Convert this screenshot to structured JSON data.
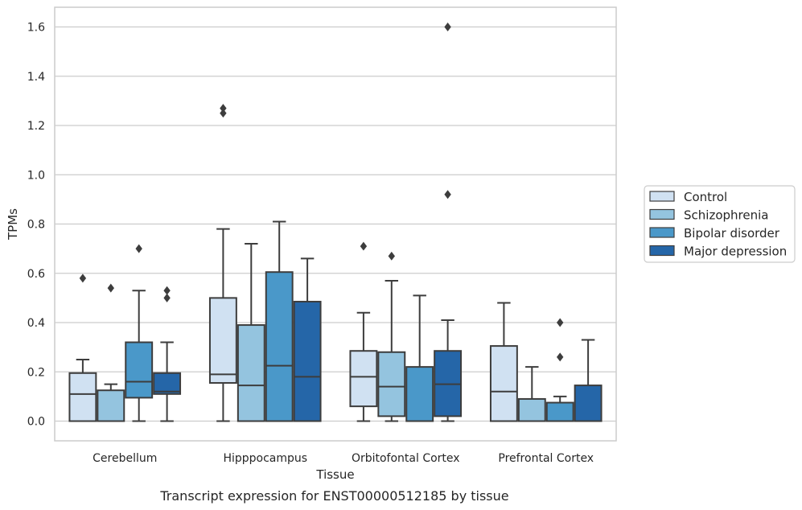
{
  "chart_data": {
    "type": "box",
    "title": "",
    "caption": "Transcript expression for ENST00000512185 by tissue",
    "xlabel": "Tissue",
    "ylabel": "TPMs",
    "ylim": [
      -0.08,
      1.68
    ],
    "yticks": [
      "0.0",
      "0.2",
      "0.4",
      "0.6",
      "0.8",
      "1.0",
      "1.2",
      "1.4",
      "1.6"
    ],
    "grid": "horizontal",
    "legend_position": "right",
    "categories": [
      "Cerebellum",
      "Hipppocampus",
      "Orbitofontal Cortex",
      "Prefrontal Cortex"
    ],
    "series": [
      {
        "name": "Control",
        "color": "#d0e1f2",
        "boxes": [
          {
            "whisker_low": 0.0,
            "q1": 0.0,
            "median": 0.11,
            "q3": 0.195,
            "whisker_high": 0.25,
            "outliers": [
              0.58
            ]
          },
          {
            "whisker_low": 0.0,
            "q1": 0.155,
            "median": 0.19,
            "q3": 0.5,
            "whisker_high": 0.78,
            "outliers": [
              1.25,
              1.27
            ]
          },
          {
            "whisker_low": 0.0,
            "q1": 0.06,
            "median": 0.18,
            "q3": 0.285,
            "whisker_high": 0.44,
            "outliers": [
              0.71
            ]
          },
          {
            "whisker_low": 0.0,
            "q1": 0.0,
            "median": 0.12,
            "q3": 0.305,
            "whisker_high": 0.48,
            "outliers": []
          }
        ]
      },
      {
        "name": "Schizophrenia",
        "color": "#94c4df",
        "boxes": [
          {
            "whisker_low": 0.0,
            "q1": 0.0,
            "median": 0.0,
            "q3": 0.125,
            "whisker_high": 0.15,
            "outliers": [
              0.54
            ]
          },
          {
            "whisker_low": 0.0,
            "q1": 0.0,
            "median": 0.145,
            "q3": 0.39,
            "whisker_high": 0.72,
            "outliers": []
          },
          {
            "whisker_low": 0.0,
            "q1": 0.02,
            "median": 0.14,
            "q3": 0.28,
            "whisker_high": 0.57,
            "outliers": [
              0.67
            ]
          },
          {
            "whisker_low": 0.0,
            "q1": 0.0,
            "median": 0.0,
            "q3": 0.09,
            "whisker_high": 0.22,
            "outliers": []
          }
        ]
      },
      {
        "name": "Bipolar disorder",
        "color": "#4a98c9",
        "boxes": [
          {
            "whisker_low": 0.0,
            "q1": 0.095,
            "median": 0.16,
            "q3": 0.32,
            "whisker_high": 0.53,
            "outliers": [
              0.7
            ]
          },
          {
            "whisker_low": 0.0,
            "q1": 0.0,
            "median": 0.225,
            "q3": 0.605,
            "whisker_high": 0.81,
            "outliers": []
          },
          {
            "whisker_low": 0.0,
            "q1": 0.0,
            "median": 0.0,
            "q3": 0.22,
            "whisker_high": 0.51,
            "outliers": []
          },
          {
            "whisker_low": 0.0,
            "q1": 0.0,
            "median": 0.0,
            "q3": 0.075,
            "whisker_high": 0.1,
            "outliers": [
              0.26,
              0.4
            ]
          }
        ]
      },
      {
        "name": "Major depression",
        "color": "#2566a8",
        "boxes": [
          {
            "whisker_low": 0.0,
            "q1": 0.11,
            "median": 0.12,
            "q3": 0.195,
            "whisker_high": 0.32,
            "outliers": [
              0.5,
              0.53
            ]
          },
          {
            "whisker_low": 0.0,
            "q1": 0.0,
            "median": 0.18,
            "q3": 0.485,
            "whisker_high": 0.66,
            "outliers": []
          },
          {
            "whisker_low": 0.0,
            "q1": 0.02,
            "median": 0.15,
            "q3": 0.285,
            "whisker_high": 0.41,
            "outliers": [
              0.92,
              1.6
            ]
          },
          {
            "whisker_low": 0.0,
            "q1": 0.0,
            "median": 0.0,
            "q3": 0.145,
            "whisker_high": 0.33,
            "outliers": []
          }
        ]
      }
    ]
  }
}
